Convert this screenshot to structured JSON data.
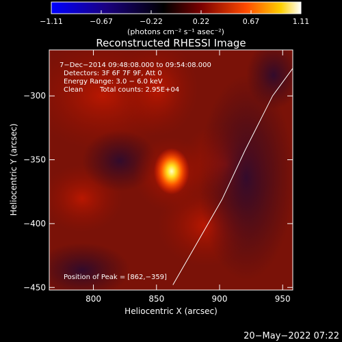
{
  "chart_data": {
    "type": "heatmap",
    "title": "Reconstructed RHESSI Image",
    "xlabel": "Heliocentric X (arcsec)",
    "ylabel": "Heliocentric Y (arcsec)",
    "xlim": [
      765,
      958
    ],
    "ylim": [
      -452,
      -264
    ],
    "x_ticks": [
      800,
      850,
      900,
      950
    ],
    "y_ticks": [
      -300,
      -350,
      -400,
      -450
    ],
    "x_tick_labels": [
      "800",
      "850",
      "900",
      "950"
    ],
    "y_tick_labels": [
      "−300",
      "−350",
      "−400",
      "−450"
    ],
    "colorbar": {
      "min": -1.11,
      "max": 1.11,
      "tick_labels": [
        "−1.11",
        "−0.67",
        "−0.22",
        "0.22",
        "0.67",
        "1.11"
      ],
      "units": "(photons cm⁻² s⁻¹ asec⁻²)"
    },
    "annotations": {
      "time_range": "7−Dec−2014 09:48:08.000 to 09:54:08.000",
      "detectors": "Detectors: 3F 6F 7F 9F, Att 0",
      "energy": "Energy Range: 3.0 − 6.0 keV",
      "clean": "Clean",
      "counts": "Total counts: 2.95E+04",
      "peak": "Position of Peak = [862,−359]"
    },
    "peak": {
      "x": 862,
      "y": -359
    },
    "limb_curve": [
      [
        962,
        -273
      ],
      [
        942,
        -300
      ],
      [
        920,
        -343
      ],
      [
        902,
        -381
      ],
      [
        884,
        -412
      ],
      [
        863,
        -448
      ]
    ],
    "grid": false
  },
  "footer": {
    "date": "20−May−2022 07:22"
  }
}
